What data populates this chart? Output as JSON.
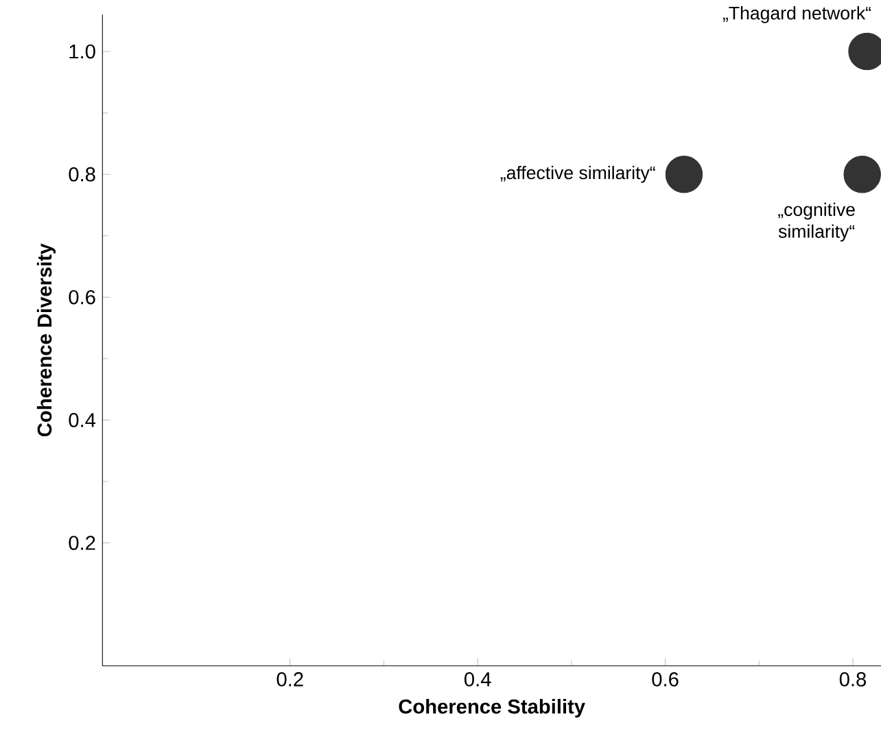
{
  "chart_data": {
    "type": "scatter",
    "xlabel": "Coherence Stability",
    "ylabel": "Coherence Diversity",
    "x": [
      0.815,
      0.62,
      0.81
    ],
    "values": [
      1.0,
      0.8,
      0.8
    ],
    "color": "#333333",
    "marker": "circle",
    "xlim": [
      0,
      0.83
    ],
    "ylim": [
      0,
      1.06
    ],
    "xticks": [
      0.2,
      0.4,
      0.6,
      0.8
    ],
    "yticks": [
      0.2,
      0.4,
      0.6,
      0.8,
      {
        "value": 1.0,
        "label": "1.0"
      }
    ],
    "annotations": [
      {
        "text": "„Thagard network“",
        "x": 0.815,
        "y": 1.0
      },
      {
        "text": "„affective similarity“",
        "x": 0.62,
        "y": 0.8
      },
      {
        "text": "„cognitive similarity“",
        "x": 0.81,
        "y": 0.8
      }
    ]
  }
}
